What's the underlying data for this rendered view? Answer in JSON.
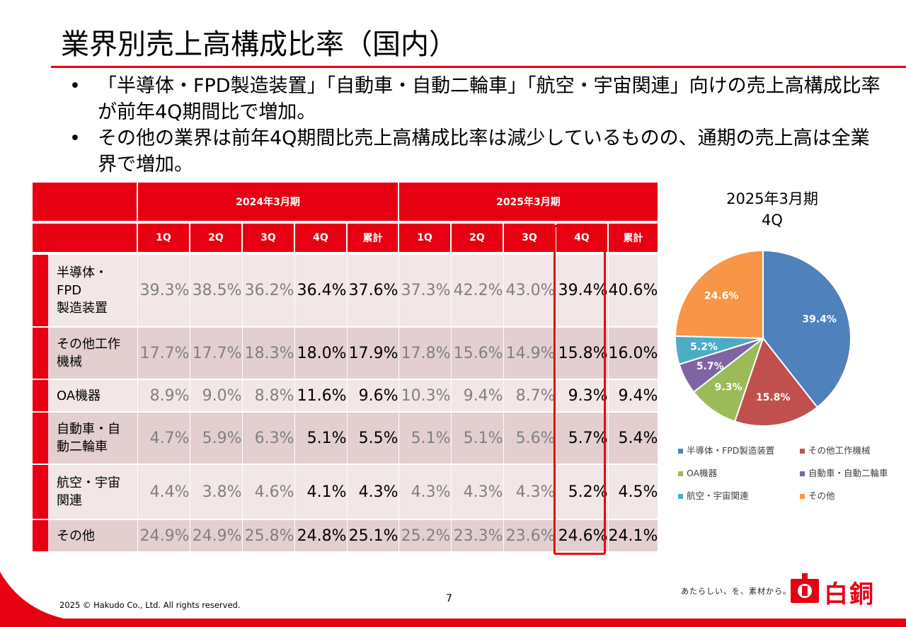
{
  "title": "業界別売上高構成比率（国内）",
  "bullets": [
    "「半導体・FPD製造装置」「自動車・自動二輪車」「航空・宇宙関連」向けの売上高構成比率が前年4Q期間比で増加。",
    "その他の業界は前年4Q期間比売上高構成比率は減少しているものの、通期の売上高は全業界で増加。"
  ],
  "bullet_symbol": "•",
  "table": {
    "periods": [
      "2024年3月期",
      "2025年3月期"
    ],
    "quarters": [
      "1Q",
      "2Q",
      "3Q",
      "4Q",
      "累計",
      "1Q",
      "2Q",
      "3Q",
      "4Q",
      "累計"
    ],
    "rows": [
      {
        "label_lines": [
          "半導体・",
          "FPD",
          "製造装置"
        ],
        "values": [
          "39.3%",
          "38.5%",
          "36.2%",
          "36.4%",
          "37.6%",
          "37.3%",
          "42.2%",
          "43.0%",
          "39.4%",
          "40.6%"
        ]
      },
      {
        "label_lines": [
          "その他工作",
          "機械"
        ],
        "values": [
          "17.7%",
          "17.7%",
          "18.3%",
          "18.0%",
          "17.9%",
          "17.8%",
          "15.6%",
          "14.9%",
          "15.8%",
          "16.0%"
        ]
      },
      {
        "label_lines": [
          "OA機器"
        ],
        "values": [
          "8.9%",
          "9.0%",
          "8.8%",
          "11.6%",
          "9.6%",
          "10.3%",
          "9.4%",
          "8.7%",
          "9.3%",
          "9.4%"
        ]
      },
      {
        "label_lines": [
          "自動車・自",
          "動二輪車"
        ],
        "values": [
          "4.7%",
          "5.9%",
          "6.3%",
          "5.1%",
          "5.5%",
          "5.1%",
          "5.1%",
          "5.6%",
          "5.7%",
          "5.4%"
        ]
      },
      {
        "label_lines": [
          "航空・宇宙",
          "関連"
        ],
        "values": [
          "4.4%",
          "3.8%",
          "4.6%",
          "4.1%",
          "4.3%",
          "4.3%",
          "4.3%",
          "4.3%",
          "5.2%",
          "4.5%"
        ]
      },
      {
        "label_lines": [
          "その他"
        ],
        "values": [
          "24.9%",
          "24.9%",
          "25.8%",
          "24.8%",
          "25.1%",
          "25.2%",
          "23.3%",
          "23.6%",
          "24.6%",
          "24.1%"
        ]
      }
    ],
    "highlighted_column": "2025年3月期 4Q"
  },
  "chart_data": {
    "type": "pie",
    "title_lines": [
      "2025年3月期",
      "4Q"
    ],
    "labels": [
      "半導体・FPD製造装置",
      "その他工作機械",
      "OA機器",
      "自動車・自動二輪車",
      "航空・宇宙関連",
      "その他"
    ],
    "values": [
      39.4,
      15.8,
      9.3,
      5.7,
      5.2,
      24.6
    ],
    "value_labels": [
      "39.4%",
      "15.8%",
      "9.3%",
      "5.7%",
      "5.2%",
      "24.6%"
    ],
    "colors": [
      "#4f81bd",
      "#c0504d",
      "#9bbb59",
      "#8064a2",
      "#4bacc6",
      "#f79646"
    ],
    "start": "12 o'clock",
    "direction": "clockwise",
    "legend_position": "bottom"
  },
  "footer": {
    "copyright": "2025 © Hakudo Co., Ltd. All rights reserved.",
    "page_number": "7",
    "tagline": "あたらしい、を、素材から。",
    "logo_text": "白銅"
  },
  "colors": {
    "accent": "#e60012",
    "row_light": "#f2e6e6",
    "row_dark": "#e3cfd0",
    "muted_text": "#808080"
  }
}
